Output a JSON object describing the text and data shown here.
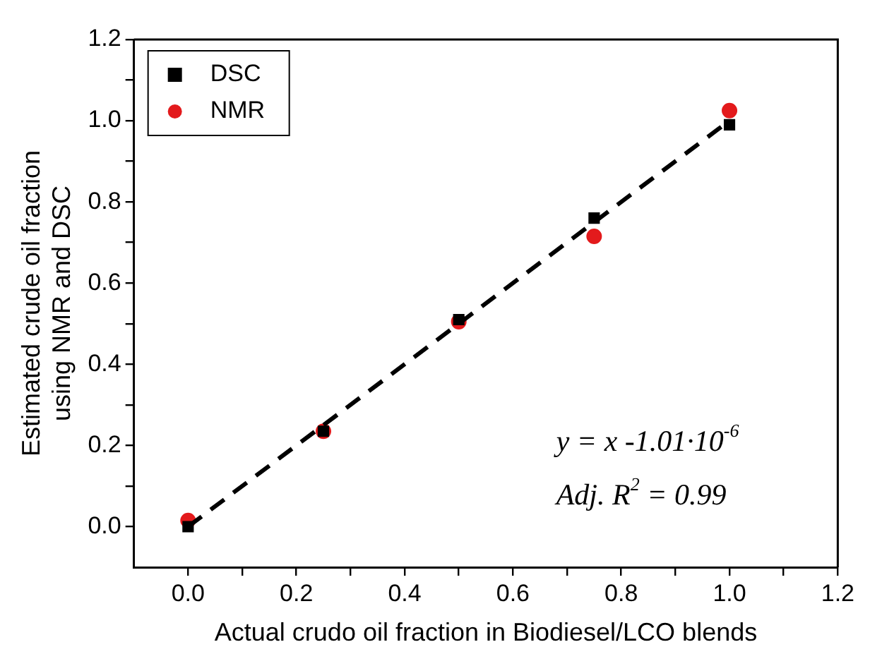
{
  "chart_data": {
    "type": "scatter",
    "xlabel": "Actual crudo oil fraction in Biodiesel/LCO blends",
    "ylabel": "Estimated crude oil fraction\nusing NMR and DSC",
    "xlim": [
      -0.1,
      1.2
    ],
    "ylim": [
      -0.1,
      1.2
    ],
    "xticks": [
      {
        "value": 0,
        "label": "0.0"
      },
      {
        "value": 0.1,
        "label": null
      },
      0.2,
      {
        "value": 0.3,
        "label": null
      },
      0.4,
      {
        "value": 0.5,
        "label": null
      },
      0.6,
      {
        "value": 0.7,
        "label": null
      },
      0.8,
      {
        "value": 0.9,
        "label": null
      },
      {
        "value": 1,
        "label": "1.0"
      },
      {
        "value": 1.1,
        "label": null
      },
      1.2
    ],
    "yticks": [
      {
        "value": 0,
        "label": "0.0"
      },
      {
        "value": 0.1,
        "label": null
      },
      0.2,
      {
        "value": 0.3,
        "label": null
      },
      0.4,
      {
        "value": 0.5,
        "label": null
      },
      0.6,
      {
        "value": 0.7,
        "label": null
      },
      0.8,
      {
        "value": 0.9,
        "label": null
      },
      {
        "value": 1,
        "label": "1.0"
      },
      {
        "value": 1.1,
        "label": null
      },
      1.2
    ],
    "grid": false,
    "legend": "top left",
    "series": [
      {
        "type": "line",
        "x": [
          0,
          1
        ],
        "values": [
          0,
          1
        ],
        "color": "#000000",
        "line_style": "dashed",
        "marker": "none"
      },
      {
        "name": "DSC",
        "x": [
          0,
          0.25,
          0.5,
          0.75,
          1.0
        ],
        "values": [
          0.0,
          0.235,
          0.51,
          0.76,
          0.99
        ],
        "color": "#000000",
        "marker": "square"
      },
      {
        "name": "NMR",
        "x": [
          0,
          0.25,
          0.5,
          0.75,
          1.0
        ],
        "values": [
          0.015,
          0.235,
          0.505,
          0.715,
          1.025
        ],
        "color": "#e31a1c",
        "marker": "circle"
      }
    ],
    "annotations": [
      "y = x -1.01·10$^{-6}$",
      "Adj. R$^{2}$ = 0.99"
    ]
  }
}
